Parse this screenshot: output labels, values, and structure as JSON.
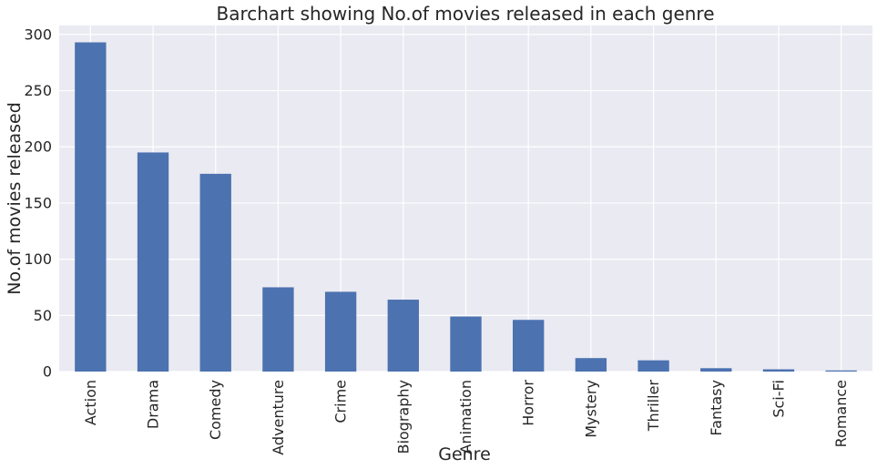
{
  "chart_data": {
    "type": "bar",
    "title": "Barchart showing No.of movies released in each genre",
    "xlabel": "Genre",
    "ylabel": "No.of movies released",
    "categories": [
      "Action",
      "Drama",
      "Comedy",
      "Adventure",
      "Crime",
      "Biography",
      "Animation",
      "Horror",
      "Mystery",
      "Thriller",
      "Fantasy",
      "Sci-Fi",
      "Romance"
    ],
    "values": [
      293,
      195,
      176,
      75,
      71,
      64,
      49,
      46,
      12,
      10,
      3,
      2,
      1
    ],
    "ylim": [
      0,
      308
    ],
    "yticks": [
      0,
      50,
      100,
      150,
      200,
      250,
      300
    ],
    "grid": true,
    "bar_color": "#4c72b0",
    "background_color": "#eaeaf2",
    "grid_color": "#ffffff"
  }
}
